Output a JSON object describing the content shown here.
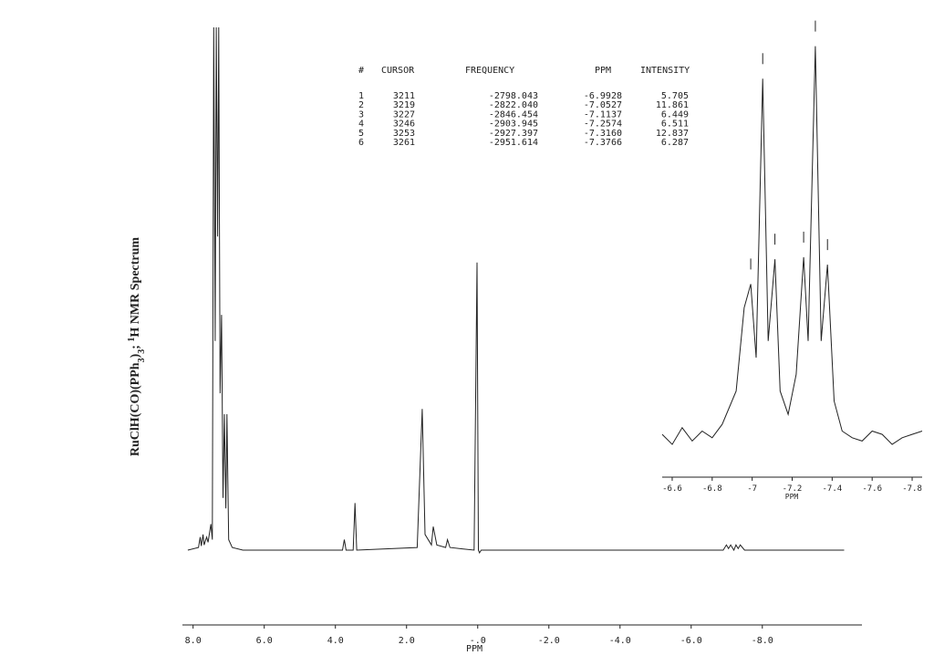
{
  "chart_data": [
    {
      "type": "line",
      "title": [
        "RuClH(CO)(PPh",
        "3",
        ")",
        "3",
        "; ",
        "1",
        "H  NMR  Spectrum"
      ],
      "xlabel": "PPM",
      "xlim": [
        8.3,
        -10.8
      ],
      "ylim": [
        0,
        100
      ],
      "xticks": [
        {
          "value": 8,
          "label": "8.0"
        },
        {
          "value": 6,
          "label": "6.0"
        },
        {
          "value": 4,
          "label": "4.0"
        },
        {
          "value": 2,
          "label": "2.0"
        },
        {
          "value": 0,
          "label": "-.0"
        },
        {
          "value": -2,
          "label": "-2.0"
        },
        {
          "value": -4,
          "label": "-4.0"
        },
        {
          "value": -6,
          "label": "-6.0"
        },
        {
          "value": -8,
          "label": "-8.0"
        }
      ],
      "color": "#222222",
      "x": [
        8.15,
        7.85,
        7.8,
        7.77,
        7.72,
        7.69,
        7.62,
        7.58,
        7.5,
        7.46,
        7.42,
        7.38,
        7.35,
        7.31,
        7.28,
        7.24,
        7.2,
        7.16,
        7.12,
        7.08,
        7.05,
        7.0,
        6.9,
        6.6,
        3.8,
        3.75,
        3.7,
        3.5,
        3.45,
        3.4,
        1.7,
        1.56,
        1.48,
        1.3,
        1.25,
        1.15,
        0.9,
        0.85,
        0.78,
        0.1,
        0.02,
        -0.02,
        -0.05,
        -0.1,
        -6.9,
        -6.99,
        -7.05,
        -7.11,
        -7.2,
        -7.26,
        -7.32,
        -7.38,
        -7.5,
        -10.3
      ],
      "values": [
        0,
        0.5,
        2.5,
        0.8,
        3,
        1,
        2.5,
        1.5,
        5,
        2,
        100,
        40,
        100,
        60,
        100,
        30,
        45,
        10,
        26,
        8,
        26,
        2,
        0.5,
        0,
        0,
        2,
        0,
        0,
        9,
        0,
        0.5,
        27,
        3,
        1,
        4.5,
        1,
        0.5,
        2,
        0.5,
        0,
        55,
        0,
        -0.5,
        0,
        0,
        1,
        0.3,
        1,
        0,
        1,
        0.3,
        1,
        0,
        0
      ]
    },
    {
      "type": "line",
      "xlabel": "PPM",
      "xlim": [
        -6.55,
        -7.85
      ],
      "ylim": [
        0,
        13.4
      ],
      "xticks": [
        -6.6,
        -6.8,
        -7.0,
        -7.2,
        -7.4,
        -7.6,
        -7.8
      ],
      "color": "#222222",
      "x": [
        -6.55,
        -6.6,
        -6.65,
        -6.7,
        -6.75,
        -6.8,
        -6.85,
        -6.92,
        -6.96,
        -6.9928,
        -7.02,
        -7.0527,
        -7.08,
        -7.1137,
        -7.14,
        -7.18,
        -7.22,
        -7.2574,
        -7.28,
        -7.316,
        -7.345,
        -7.3766,
        -7.41,
        -7.45,
        -7.5,
        -7.55,
        -7.6,
        -7.65,
        -7.7,
        -7.75,
        -7.8,
        -7.85
      ],
      "values": [
        1.2,
        0.9,
        1.4,
        1.0,
        1.3,
        1.1,
        1.5,
        2.5,
        5,
        5.705,
        3.5,
        11.861,
        4,
        6.449,
        2.5,
        1.8,
        3,
        6.511,
        4,
        12.837,
        4,
        6.287,
        2.2,
        1.3,
        1.1,
        1.0,
        1.3,
        1.2,
        0.9,
        1.1,
        1.2,
        1.3
      ]
    }
  ],
  "table": {
    "header": [
      "#",
      "CURSOR",
      "FREQUENCY",
      "PPM",
      "INTENSITY"
    ],
    "rows": [
      [
        "1",
        "3211",
        "-2798.043",
        "-6.9928",
        "5.705"
      ],
      [
        "2",
        "3219",
        "-2822.040",
        "-7.0527",
        "11.861"
      ],
      [
        "3",
        "3227",
        "-2846.454",
        "-7.1137",
        "6.449"
      ],
      [
        "4",
        "3246",
        "-2903.945",
        "-7.2574",
        "6.511"
      ],
      [
        "5",
        "3253",
        "-2927.397",
        "-7.3160",
        "12.837"
      ],
      [
        "6",
        "3261",
        "-2951.614",
        "-7.3766",
        "6.287"
      ]
    ]
  }
}
